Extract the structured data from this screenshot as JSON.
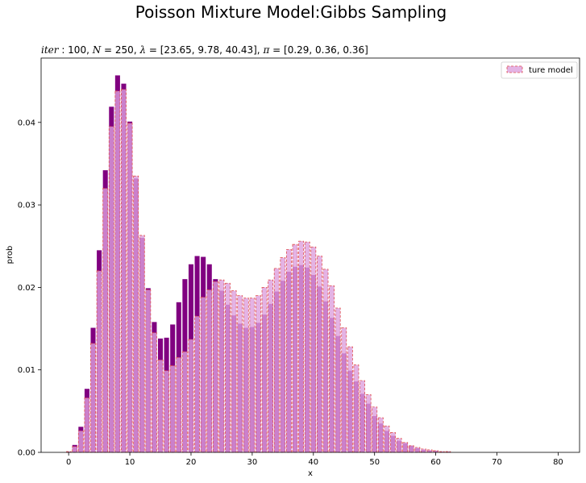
{
  "chart_data": {
    "type": "bar",
    "suptitle": "Poisson Mixture Model:Gibbs Sampling",
    "title": {
      "iter_label": "iter",
      "iter_value": "100",
      "n_label": "N",
      "n_value": "250",
      "lambda_label": "λ",
      "lambda_value": "[23.65, 9.78, 40.43]",
      "pi_label": "π",
      "pi_value": "[0.29, 0.36, 0.36]"
    },
    "xlabel": "x",
    "ylabel": "prob",
    "xlim": [
      -4.5,
      83.5
    ],
    "ylim": [
      0,
      0.0478
    ],
    "xticks": [
      0,
      10,
      20,
      30,
      40,
      50,
      60,
      70,
      80
    ],
    "yticks": [
      0.0,
      0.01,
      0.02,
      0.03,
      0.04
    ],
    "ytick_labels": [
      "0.00",
      "0.01",
      "0.02",
      "0.03",
      "0.04"
    ],
    "x": [
      0,
      1,
      2,
      3,
      4,
      5,
      6,
      7,
      8,
      9,
      10,
      11,
      12,
      13,
      14,
      15,
      16,
      17,
      18,
      19,
      20,
      21,
      22,
      23,
      24,
      25,
      26,
      27,
      28,
      29,
      30,
      31,
      32,
      33,
      34,
      35,
      36,
      37,
      38,
      39,
      40,
      41,
      42,
      43,
      44,
      45,
      46,
      47,
      48,
      49,
      50,
      51,
      52,
      53,
      54,
      55,
      56,
      57,
      58,
      59,
      60,
      61,
      62,
      63,
      64,
      65
    ],
    "series": [
      {
        "role": "estimated",
        "color": "#800080",
        "values": [
          0.0001,
          0.0009,
          0.0031,
          0.0077,
          0.0151,
          0.0245,
          0.0342,
          0.0419,
          0.0457,
          0.0447,
          0.0401,
          0.0332,
          0.026,
          0.0199,
          0.0158,
          0.0138,
          0.0139,
          0.0155,
          0.0182,
          0.021,
          0.0228,
          0.0238,
          0.0237,
          0.0228,
          0.021,
          0.0196,
          0.0179,
          0.0166,
          0.0156,
          0.0151,
          0.0152,
          0.0157,
          0.0167,
          0.018,
          0.0195,
          0.0208,
          0.0219,
          0.0225,
          0.0227,
          0.0224,
          0.0215,
          0.0201,
          0.0183,
          0.0163,
          0.0141,
          0.012,
          0.0099,
          0.0086,
          0.0071,
          0.0059,
          0.0044,
          0.0035,
          0.0026,
          0.002,
          0.0014,
          0.0011,
          0.0008,
          0.0005,
          0.0003,
          0.0002,
          0.0002,
          0.0001,
          0.0001,
          0.0,
          0.0,
          0.0
        ]
      },
      {
        "role": "true",
        "name": "ture model",
        "fill": "#dda0dd",
        "edge": "#e05050",
        "values": [
          0.0001,
          0.0007,
          0.0026,
          0.0066,
          0.0132,
          0.022,
          0.032,
          0.0395,
          0.0438,
          0.044,
          0.0399,
          0.0335,
          0.0263,
          0.0197,
          0.0145,
          0.0112,
          0.0099,
          0.0105,
          0.0115,
          0.0122,
          0.0137,
          0.0165,
          0.0188,
          0.0197,
          0.0207,
          0.0209,
          0.0205,
          0.0196,
          0.019,
          0.0187,
          0.0187,
          0.019,
          0.02,
          0.0209,
          0.0223,
          0.0236,
          0.0246,
          0.0252,
          0.0256,
          0.0255,
          0.0249,
          0.0238,
          0.0222,
          0.0202,
          0.0175,
          0.0151,
          0.0128,
          0.0106,
          0.0087,
          0.007,
          0.0055,
          0.0042,
          0.0032,
          0.0024,
          0.0017,
          0.0012,
          0.0008,
          0.0006,
          0.0004,
          0.0003,
          0.0002,
          0.0001,
          0.0001,
          0.0,
          0.0,
          0.0
        ]
      }
    ],
    "legend": {
      "placement": "upper-right"
    }
  }
}
